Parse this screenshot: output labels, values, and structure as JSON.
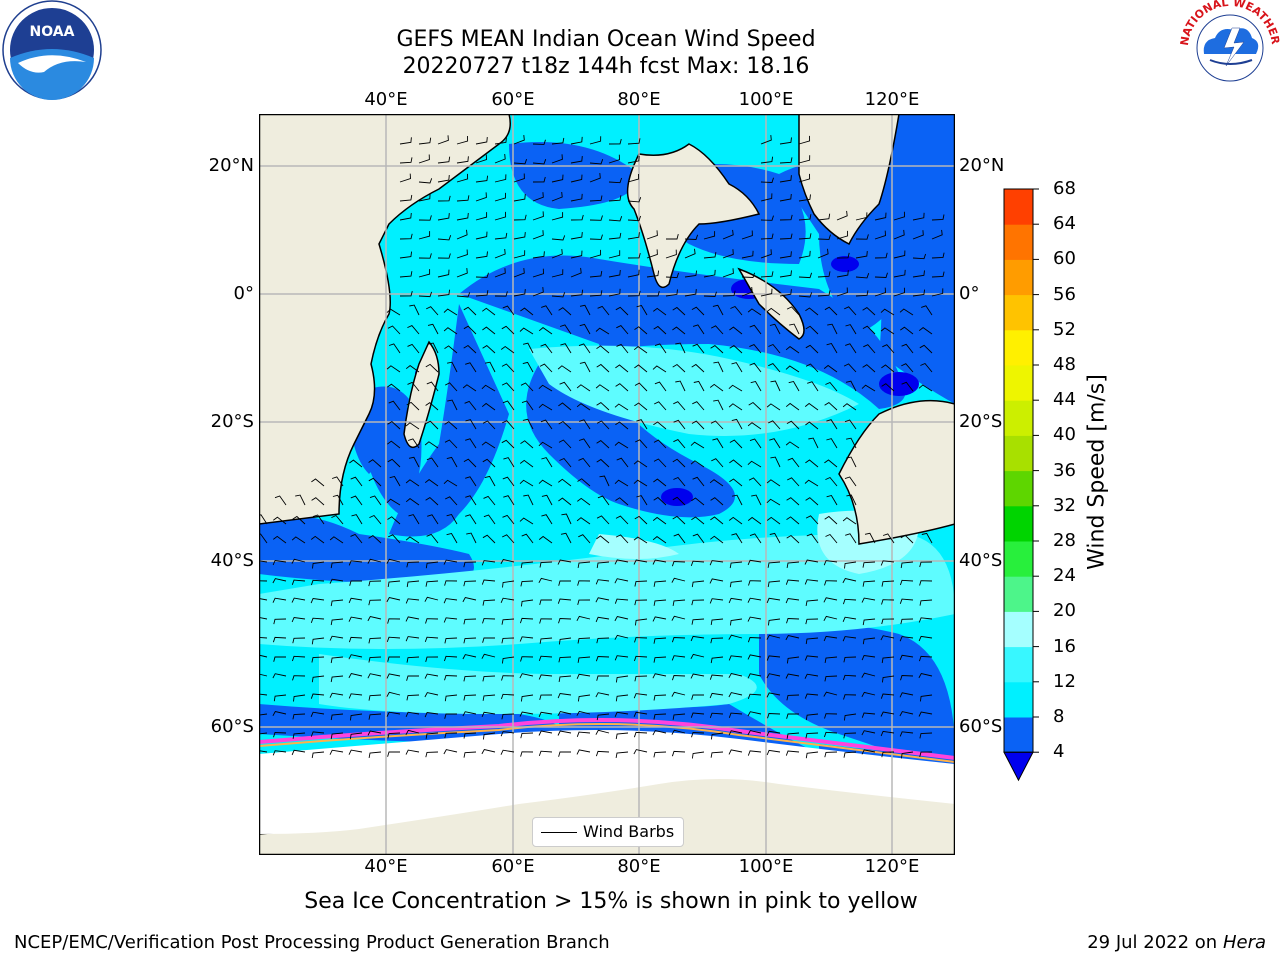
{
  "title": {
    "line1": "GEFS MEAN Indian Ocean Wind Speed",
    "line2": "20220727 t18z 144h fcst   Max: 18.16"
  },
  "axes": {
    "lon_ticks": [
      "40°E",
      "60°E",
      "80°E",
      "100°E",
      "120°E"
    ],
    "lat_ticks": [
      "20°N",
      "0°",
      "20°S",
      "40°S",
      "60°S"
    ]
  },
  "colorbar": {
    "label": "Wind Speed [m/s]",
    "ticks": [
      "4",
      "8",
      "12",
      "16",
      "20",
      "24",
      "28",
      "32",
      "36",
      "40",
      "44",
      "48",
      "52",
      "56",
      "60",
      "64",
      "68"
    ],
    "colors": [
      "#0a62f5",
      "#00f0ff",
      "#38f7ff",
      "#a5ffff",
      "#4df58a",
      "#28ef3c",
      "#00d400",
      "#5ed600",
      "#a8e000",
      "#ccef00",
      "#eef500",
      "#fff000",
      "#ffc300",
      "#ff9c00",
      "#ff7400",
      "#ff4000",
      "#f50000"
    ],
    "under_color": "#0000ee"
  },
  "legend": {
    "label": "Wind Barbs"
  },
  "subtitle": "Sea Ice Concentration > 15% is shown in pink to yellow",
  "footer": {
    "left": "NCEP/EMC/Verification Post Processing Product Generation Branch",
    "right_prefix": "29 Jul 2022 on",
    "right_machine": "Hera"
  },
  "logos": {
    "left": {
      "name": "noara-logo",
      "text": "NOAA",
      "ring_text": "NATIONAL OCEANIC AND ATMOSPHERIC ADMINISTRATION · U.S. DEPARTMENT OF COMMERCE"
    },
    "right": {
      "name": "nws-logo",
      "ring_text": "NATIONAL WEATHER SERVICE"
    }
  },
  "colors": {
    "land": "#efedde",
    "ocean_base": "#00f0ff",
    "weak_wind": "#0a62f5",
    "calm": "#0000ee",
    "strong_wind": "#5efcff",
    "gust": "#a5ffff",
    "ice": "#ffffff"
  }
}
